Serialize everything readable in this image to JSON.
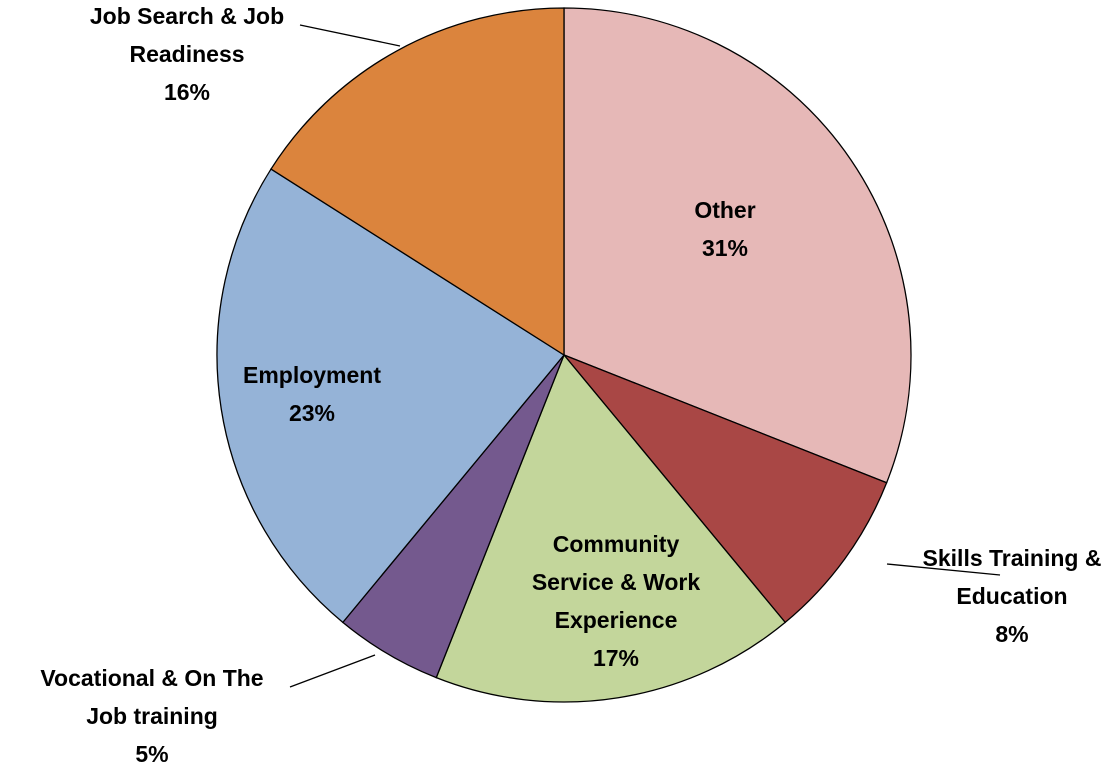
{
  "chart_data": {
    "type": "pie",
    "title": "",
    "start_angle_deg": 0,
    "direction": "clockwise",
    "legend": "none",
    "slices": [
      {
        "name": "Other",
        "label_lines": [
          "Other",
          "31%"
        ],
        "value": 31,
        "color": "#E6B8B7",
        "label_position": "inside"
      },
      {
        "name": "Skills Training & Education",
        "label_lines": [
          "Skills Training &",
          "Education",
          "8%"
        ],
        "value": 8,
        "color": "#A94745",
        "label_position": "outside"
      },
      {
        "name": "Community Service & Work Experience",
        "label_lines": [
          "Community",
          "Service & Work",
          "Experience",
          "17%"
        ],
        "value": 17,
        "color": "#C3D69B",
        "label_position": "inside"
      },
      {
        "name": "Vocational & On The Job training",
        "label_lines": [
          "Vocational & On The",
          "Job training",
          "5%"
        ],
        "value": 5,
        "color": "#74598E",
        "label_position": "outside"
      },
      {
        "name": "Employment",
        "label_lines": [
          "Employment",
          "23%"
        ],
        "value": 23,
        "color": "#95B3D7",
        "label_position": "inside"
      },
      {
        "name": "Job Search & Job Readiness",
        "label_lines": [
          "Job Search & Job",
          "Readiness",
          "16%"
        ],
        "value": 16,
        "color": "#DB843D",
        "label_position": "outside"
      }
    ]
  }
}
